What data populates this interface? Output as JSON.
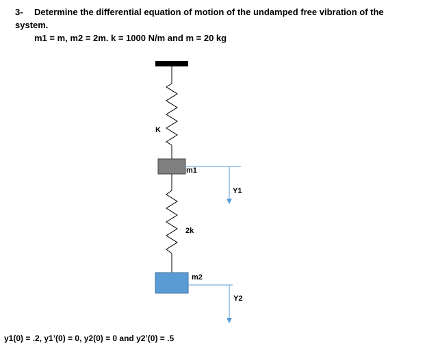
{
  "problem": {
    "number": "3-",
    "statement": "Determine the differential equation of motion of the undamped free vibration of the system.",
    "given": "m1 = m, m2 = 2m.  k = 1000 N/m and m = 20 kg"
  },
  "diagram": {
    "spring1_label": "K",
    "mass1_label": "m1",
    "spring2_label": "2k",
    "mass2_label": "m2",
    "disp1_label": "Y1",
    "disp2_label": "Y2",
    "colors": {
      "ceiling": "#000000",
      "mass1_fill": "#808080",
      "mass2_fill": "#5b9bd5",
      "reference_line": "#5b9bd5",
      "arrow": "#5b9bd5",
      "spring": "#000000"
    }
  },
  "initial_conditions": "y1(0) = .2,  y1’(0) = 0, y2(0) = 0 and y2’(0) = .5"
}
